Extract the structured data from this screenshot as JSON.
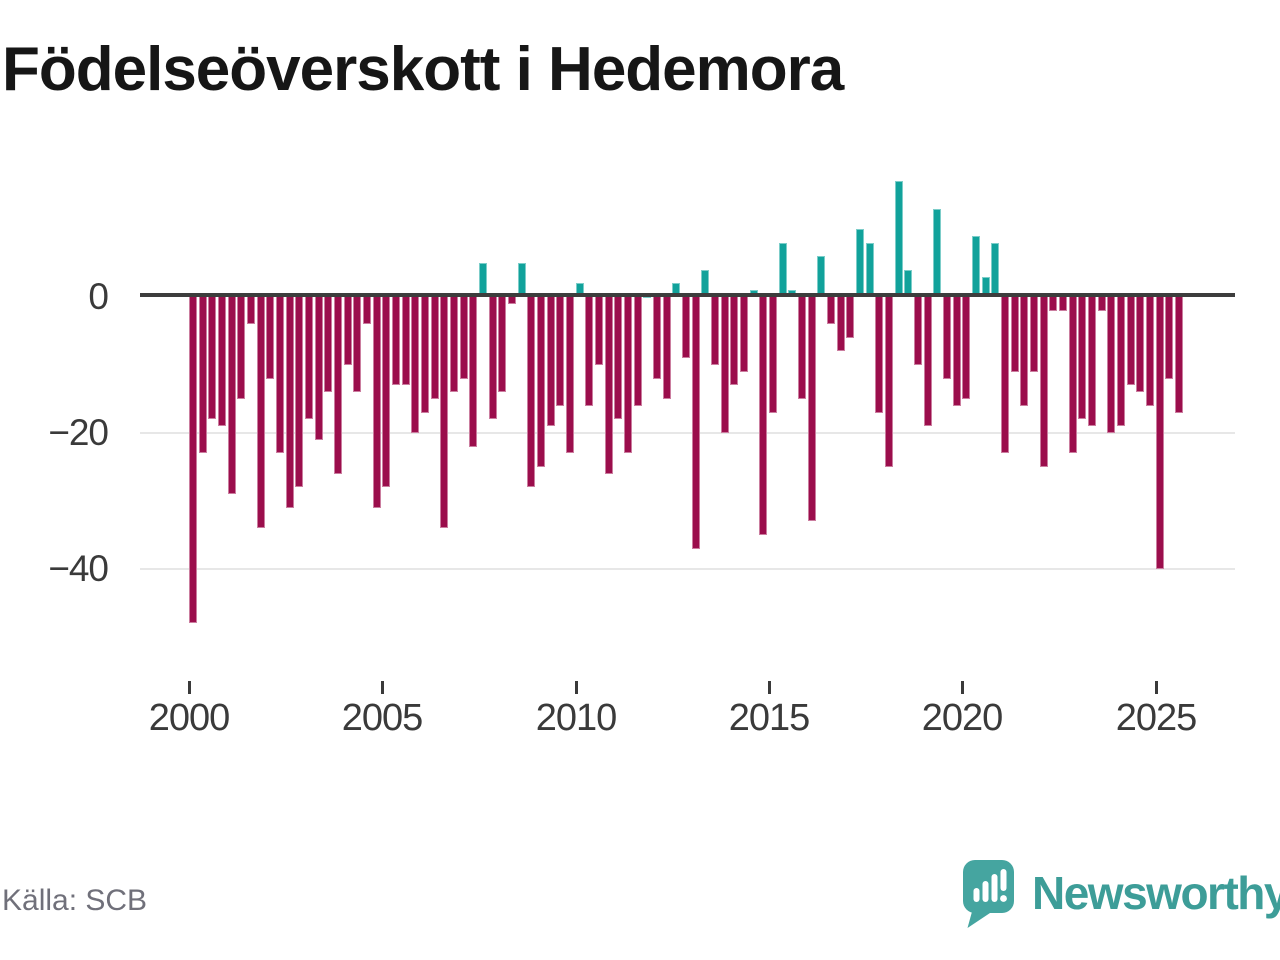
{
  "title": "Födelseöverskott i Hedemora",
  "source": "Källa: SCB",
  "logo": {
    "text": "Newsworthy"
  },
  "y_axis": {
    "ticks": [
      {
        "label": "0",
        "value": 0
      },
      {
        "label": "−20",
        "value": -20
      },
      {
        "label": "−40",
        "value": -40
      }
    ]
  },
  "x_axis": {
    "ticks": [
      {
        "label": "2000"
      },
      {
        "label": "2005"
      },
      {
        "label": "2010"
      },
      {
        "label": "2015"
      },
      {
        "label": "2020"
      },
      {
        "label": "2025"
      }
    ]
  },
  "colors": {
    "positive_bar": "#11a29b",
    "negative_bar": "#9b0e4c",
    "axis_line": "#3d3d3d",
    "gridline": "#e7e7e7",
    "axis_text": "#3a3a3a",
    "title_text": "#161616",
    "source_text": "#70707a",
    "logo_teal": "#45a5a0"
  },
  "chart_data": {
    "type": "bar",
    "title": "Födelseöverskott i Hedemora",
    "ylabel": "",
    "xlabel": "",
    "frequency": "quarterly",
    "start_period": "2000 Q1",
    "end_period": "2025 Q3",
    "x_tick_labels": [
      "2000",
      "2005",
      "2010",
      "2015",
      "2020",
      "2025"
    ],
    "y_tick_values": [
      0,
      -20,
      -40
    ],
    "ylim": [
      -50,
      18
    ],
    "grid": "horizontal",
    "legend": "none",
    "series": [
      {
        "name": "Födelseöverskott",
        "values": [
          -48,
          -23,
          -18,
          -19,
          -29,
          -15,
          -4,
          -34,
          -12,
          -23,
          -31,
          -28,
          -18,
          -21,
          -14,
          -26,
          -10,
          -14,
          -4,
          -31,
          -28,
          -13,
          -13,
          -20,
          -17,
          -15,
          -34,
          -14,
          -12,
          -22,
          5,
          -18,
          -14,
          -1,
          5,
          -28,
          -25,
          -19,
          -16,
          -23,
          2,
          -16,
          -10,
          -26,
          -18,
          -23,
          -16,
          0,
          -12,
          -15,
          2,
          -9,
          -37,
          4,
          -10,
          -20,
          -13,
          -11,
          1,
          -35,
          -17,
          8,
          1,
          -15,
          -33,
          6,
          -4,
          -8,
          -6,
          10,
          8,
          -17,
          -25,
          17,
          4,
          -10,
          -19,
          13,
          -12,
          -16,
          -15,
          9,
          3,
          8,
          -23,
          -11,
          -16,
          -11,
          -25,
          -2,
          -2,
          -23,
          -18,
          -19,
          -2,
          -20,
          -19,
          -13,
          -14,
          -16,
          -40,
          -12,
          -17
        ]
      }
    ]
  }
}
